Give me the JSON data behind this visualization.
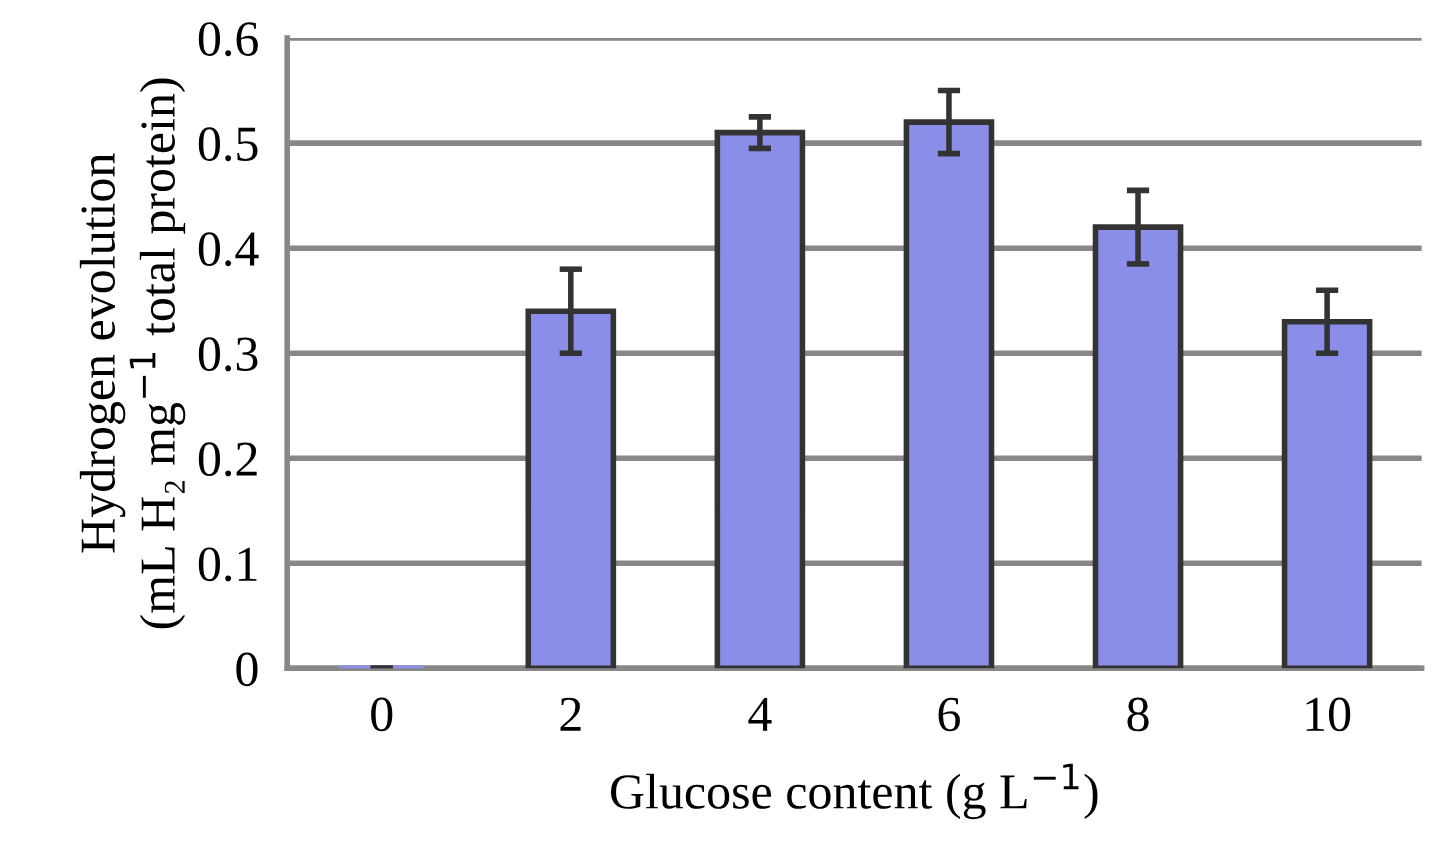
{
  "chart_data": {
    "type": "bar",
    "xlabel": "Glucose content (g L$^{−1}$)",
    "ylabel": "Hydrogen evolution\n(mL H₂ mg$^{−1}$ total protein)",
    "categories": [
      "0",
      "2",
      "4",
      "6",
      "8",
      "10"
    ],
    "values": [
      0,
      0.34,
      0.51,
      0.52,
      0.42,
      0.33
    ],
    "errors": [
      null,
      0.04,
      0.015,
      0.03,
      0.035,
      0.03
    ],
    "color": "#8a8ee8",
    "ylim": [
      0,
      0.6
    ],
    "yticks": [
      0,
      0.1,
      0.2,
      0.3,
      0.4,
      0.5,
      0.6
    ],
    "grid": "y"
  }
}
